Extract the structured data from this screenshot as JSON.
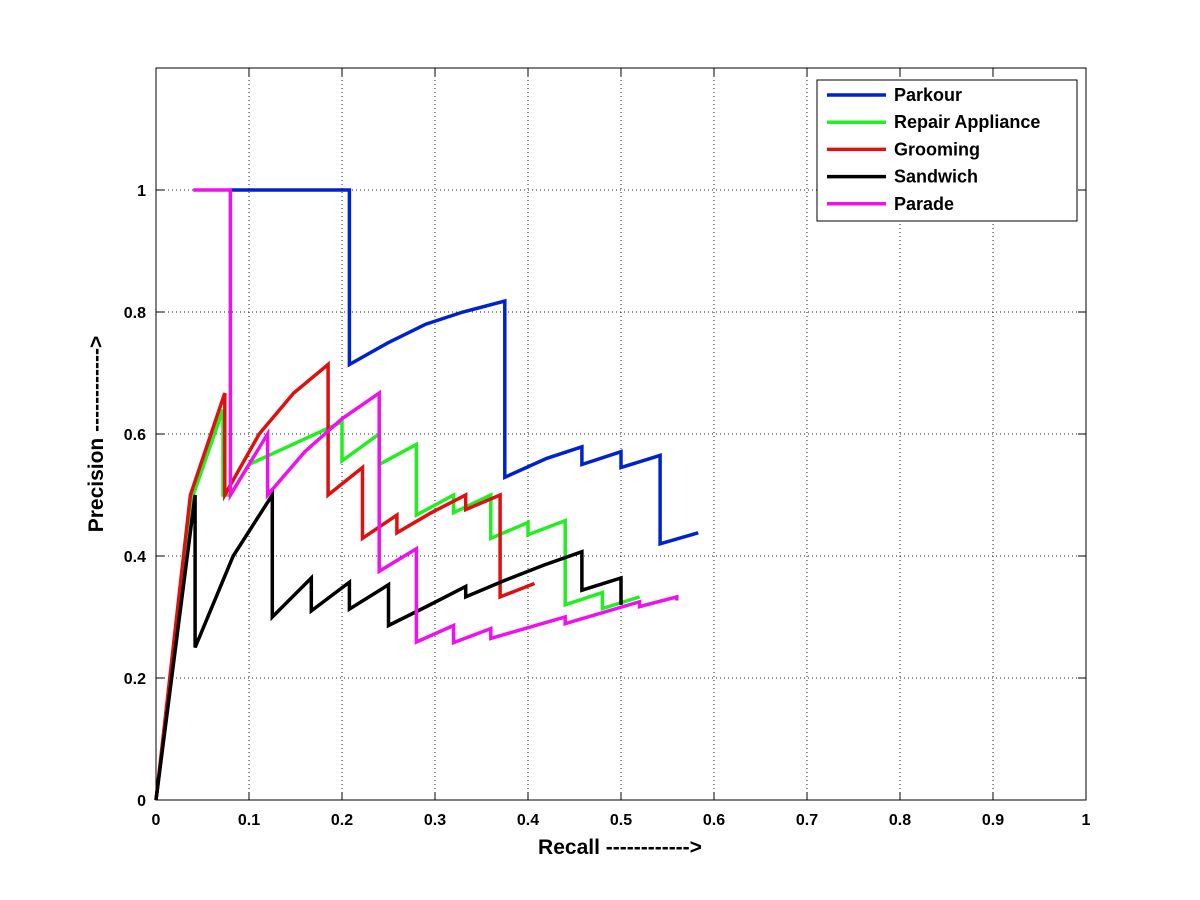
{
  "chart_data": {
    "type": "line",
    "xlabel": "Recall ------------>",
    "ylabel": "Precision ------------>",
    "xlim": [
      0,
      1
    ],
    "ylim": [
      0,
      1.2
    ],
    "xticks": [
      "0",
      "0.1",
      "0.2",
      "0.3",
      "0.4",
      "0.5",
      "0.6",
      "0.7",
      "0.8",
      "0.9",
      "1"
    ],
    "yticks": [
      "0",
      "0.2",
      "0.4",
      "0.6",
      "0.8",
      "1"
    ],
    "grid": true,
    "legend_position": "top-right",
    "series": [
      {
        "name": "Parkour",
        "color": "#0022cc",
        "x": [
          0.08,
          0.208,
          0.208,
          0.25,
          0.29,
          0.33,
          0.375,
          0.375,
          0.42,
          0.458,
          0.458,
          0.5,
          0.5,
          0.542,
          0.542,
          0.583
        ],
        "y": [
          1.0,
          1.0,
          0.714,
          0.75,
          0.78,
          0.8,
          0.818,
          0.529,
          0.56,
          0.579,
          0.55,
          0.571,
          0.545,
          0.565,
          0.42,
          0.438
        ]
      },
      {
        "name": "Repair Appliance",
        "color": "#22ee22",
        "x": [
          0,
          0.04,
          0.072,
          0.072,
          0.08,
          0.1,
          0.2,
          0.2,
          0.24,
          0.24,
          0.28,
          0.28,
          0.32,
          0.32,
          0.36,
          0.36,
          0.4,
          0.4,
          0.44,
          0.44,
          0.48,
          0.48,
          0.52
        ],
        "y": [
          0,
          0.5,
          0.64,
          0.5,
          0.5,
          0.55,
          0.62,
          0.556,
          0.6,
          0.55,
          0.583,
          0.467,
          0.5,
          0.471,
          0.5,
          0.429,
          0.455,
          0.435,
          0.458,
          0.32,
          0.34,
          0.314,
          0.333
        ]
      },
      {
        "name": "Grooming",
        "color": "#dd1111",
        "x": [
          0,
          0.037,
          0.074,
          0.074,
          0.111,
          0.148,
          0.185,
          0.185,
          0.222,
          0.222,
          0.259,
          0.259,
          0.296,
          0.333,
          0.333,
          0.37,
          0.37,
          0.407
        ],
        "y": [
          0,
          0.5,
          0.667,
          0.5,
          0.6,
          0.667,
          0.714,
          0.5,
          0.545,
          0.429,
          0.467,
          0.438,
          0.471,
          0.5,
          0.476,
          0.5,
          0.333,
          0.355
        ]
      },
      {
        "name": "Sandwich",
        "color": "#000000",
        "x": [
          0,
          0.042,
          0.042,
          0.083,
          0.125,
          0.125,
          0.167,
          0.167,
          0.208,
          0.208,
          0.25,
          0.25,
          0.292,
          0.333,
          0.333,
          0.375,
          0.417,
          0.458,
          0.458,
          0.5,
          0.5
        ],
        "y": [
          0,
          0.5,
          0.25,
          0.4,
          0.5,
          0.3,
          0.364,
          0.31,
          0.357,
          0.313,
          0.353,
          0.286,
          0.318,
          0.35,
          0.333,
          0.36,
          0.385,
          0.407,
          0.344,
          0.364,
          0.32
        ]
      },
      {
        "name": "Parade",
        "color": "#ee11ee",
        "x": [
          0.04,
          0.08,
          0.08,
          0.12,
          0.12,
          0.16,
          0.2,
          0.24,
          0.24,
          0.28,
          0.28,
          0.32,
          0.32,
          0.36,
          0.36,
          0.44,
          0.44,
          0.52,
          0.52,
          0.56,
          0.56
        ],
        "y": [
          1.0,
          1.0,
          0.5,
          0.6,
          0.5,
          0.571,
          0.625,
          0.667,
          0.375,
          0.412,
          0.259,
          0.286,
          0.258,
          0.281,
          0.265,
          0.3,
          0.289,
          0.325,
          0.317,
          0.333,
          0.327
        ]
      }
    ]
  }
}
